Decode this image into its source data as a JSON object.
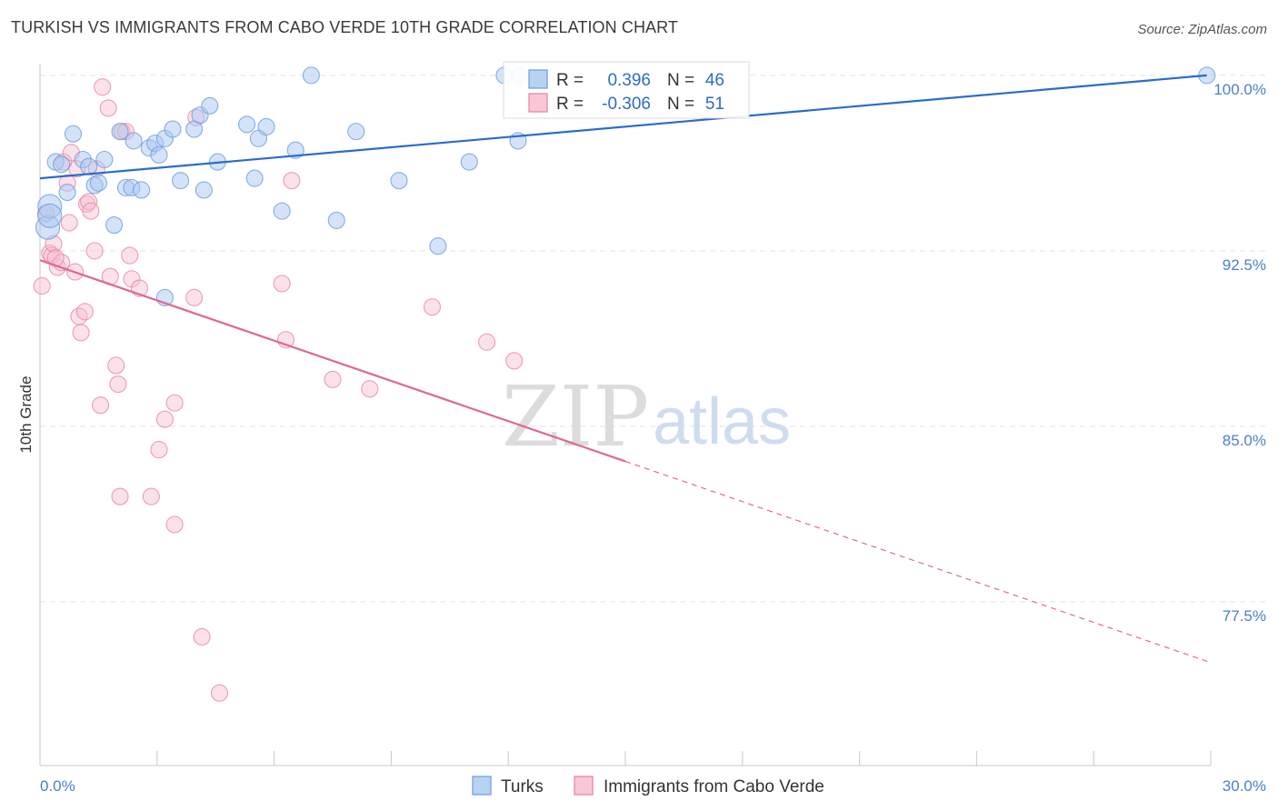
{
  "title": "TURKISH VS IMMIGRANTS FROM CABO VERDE 10TH GRADE CORRELATION CHART",
  "source": "Source: ZipAtlas.com",
  "watermark": {
    "zip": "ZIP",
    "atlas": "atlas"
  },
  "colors": {
    "turks": "#6a9ce0",
    "turks_fill": "#a9c8f0",
    "cabo": "#e87fa0",
    "cabo_fill": "#f6bfd0",
    "turks_line": "#2a6ccc",
    "cabo_line": "#e06890"
  },
  "legend": {
    "rows": [
      {
        "r_label": "R =",
        "r_value": "0.396",
        "n_label": "N =",
        "n_value": "46"
      },
      {
        "r_label": "R =",
        "r_value": "-0.306",
        "n_label": "N =",
        "n_value": "51"
      }
    ]
  },
  "chart_data": {
    "type": "scatter",
    "title": "TURKISH VS IMMIGRANTS FROM CABO VERDE 10TH GRADE CORRELATION CHART",
    "xlabel": "",
    "ylabel": "10th Grade",
    "xlim": [
      0,
      30
    ],
    "ylim": [
      70.5,
      100.5
    ],
    "x_tick_labels": [
      "0.0%",
      "30.0%"
    ],
    "y_ticks": [
      100.0,
      92.5,
      85.0,
      77.5
    ],
    "y_tick_labels": [
      "100.0%",
      "92.5%",
      "85.0%",
      "77.5%"
    ],
    "grid": true,
    "legend_position": "top-center",
    "series": [
      {
        "name": "Turks",
        "r": 0.396,
        "n": 46,
        "trend": {
          "x": [
            0,
            29.9
          ],
          "y": [
            95.6,
            100.0
          ],
          "dashed_from": null
        },
        "points": [
          [
            0.2,
            93.5
          ],
          [
            0.25,
            94.4
          ],
          [
            0.4,
            96.3
          ],
          [
            0.55,
            96.2
          ],
          [
            0.7,
            95.0
          ],
          [
            0.85,
            97.5
          ],
          [
            1.1,
            96.4
          ],
          [
            1.25,
            96.1
          ],
          [
            1.4,
            95.3
          ],
          [
            1.65,
            96.4
          ],
          [
            1.5,
            95.4
          ],
          [
            1.9,
            93.6
          ],
          [
            2.05,
            97.6
          ],
          [
            2.2,
            95.2
          ],
          [
            2.4,
            97.2
          ],
          [
            2.35,
            95.2
          ],
          [
            2.6,
            95.1
          ],
          [
            2.8,
            96.9
          ],
          [
            2.95,
            97.1
          ],
          [
            3.05,
            96.6
          ],
          [
            3.2,
            97.3
          ],
          [
            3.4,
            97.7
          ],
          [
            3.6,
            95.5
          ],
          [
            3.95,
            97.7
          ],
          [
            4.1,
            98.3
          ],
          [
            4.2,
            95.1
          ],
          [
            4.35,
            98.7
          ],
          [
            4.55,
            96.3
          ],
          [
            5.3,
            97.9
          ],
          [
            5.5,
            95.6
          ],
          [
            5.6,
            97.3
          ],
          [
            5.8,
            97.8
          ],
          [
            6.2,
            94.2
          ],
          [
            6.55,
            96.8
          ],
          [
            6.95,
            100.0
          ],
          [
            7.6,
            93.8
          ],
          [
            8.1,
            97.6
          ],
          [
            9.2,
            95.5
          ],
          [
            10.2,
            92.7
          ],
          [
            11.0,
            96.3
          ],
          [
            11.9,
            100.0
          ],
          [
            12.3,
            100.0
          ],
          [
            12.25,
            97.2
          ],
          [
            3.2,
            90.5
          ],
          [
            29.9,
            100.0
          ],
          [
            0.25,
            94.0
          ]
        ]
      },
      {
        "name": "Immigrants from Cabo Verde",
        "r": -0.306,
        "n": 51,
        "trend": {
          "x": [
            0,
            15.0,
            30.0
          ],
          "y": [
            92.1,
            83.5,
            74.9
          ],
          "dashed_from": 15.0
        },
        "points": [
          [
            0.05,
            91.0
          ],
          [
            0.15,
            94.1
          ],
          [
            0.25,
            92.4
          ],
          [
            0.3,
            92.3
          ],
          [
            0.35,
            92.8
          ],
          [
            0.45,
            91.8
          ],
          [
            0.55,
            92.0
          ],
          [
            0.6,
            96.3
          ],
          [
            0.7,
            95.4
          ],
          [
            0.75,
            93.7
          ],
          [
            0.8,
            96.7
          ],
          [
            0.9,
            91.6
          ],
          [
            0.95,
            96.0
          ],
          [
            1.0,
            89.7
          ],
          [
            1.05,
            89.0
          ],
          [
            1.15,
            89.9
          ],
          [
            1.2,
            94.5
          ],
          [
            1.25,
            94.6
          ],
          [
            1.3,
            94.2
          ],
          [
            1.4,
            92.5
          ],
          [
            1.45,
            96.0
          ],
          [
            1.55,
            85.9
          ],
          [
            1.6,
            99.5
          ],
          [
            1.75,
            98.6
          ],
          [
            1.8,
            91.4
          ],
          [
            1.95,
            87.6
          ],
          [
            2.0,
            86.8
          ],
          [
            2.05,
            82.0
          ],
          [
            2.1,
            97.6
          ],
          [
            2.2,
            97.6
          ],
          [
            2.3,
            92.3
          ],
          [
            2.35,
            91.3
          ],
          [
            2.55,
            90.9
          ],
          [
            2.85,
            82.0
          ],
          [
            3.05,
            84.0
          ],
          [
            3.2,
            85.3
          ],
          [
            3.45,
            86.0
          ],
          [
            3.45,
            80.8
          ],
          [
            3.95,
            90.5
          ],
          [
            4.0,
            98.2
          ],
          [
            4.15,
            76.0
          ],
          [
            4.6,
            73.6
          ],
          [
            6.2,
            91.1
          ],
          [
            6.3,
            88.7
          ],
          [
            6.45,
            95.5
          ],
          [
            7.5,
            87.0
          ],
          [
            8.45,
            86.6
          ],
          [
            10.05,
            90.1
          ],
          [
            11.45,
            88.6
          ],
          [
            12.15,
            87.8
          ],
          [
            0.4,
            92.2
          ]
        ]
      }
    ]
  }
}
